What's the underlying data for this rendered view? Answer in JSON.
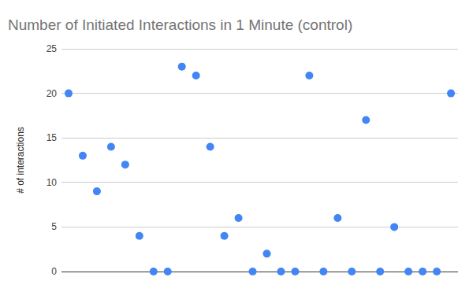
{
  "chart_data": {
    "type": "scatter",
    "title": "Number of Initiated Interactions in 1 Minute (control)",
    "y_label": "# of interactions",
    "categories": [
      null,
      null,
      null,
      null,
      null,
      null,
      null,
      null,
      null,
      null,
      null,
      null,
      null,
      null,
      null,
      null,
      null,
      null,
      null,
      null,
      null,
      null,
      null,
      null,
      null,
      null,
      null,
      null
    ],
    "values": [
      20,
      13,
      9,
      14,
      12,
      4,
      0,
      0,
      23,
      22,
      14,
      4,
      6,
      0,
      2,
      0,
      0,
      22,
      0,
      6,
      0,
      17,
      0,
      5,
      0,
      0,
      0,
      20
    ],
    "color": "#4285f4",
    "marker": "circle",
    "ylim": [
      0,
      25
    ],
    "yticks": [
      0,
      5,
      10,
      15,
      20,
      25
    ],
    "grid": true,
    "tick_labels": "y"
  }
}
